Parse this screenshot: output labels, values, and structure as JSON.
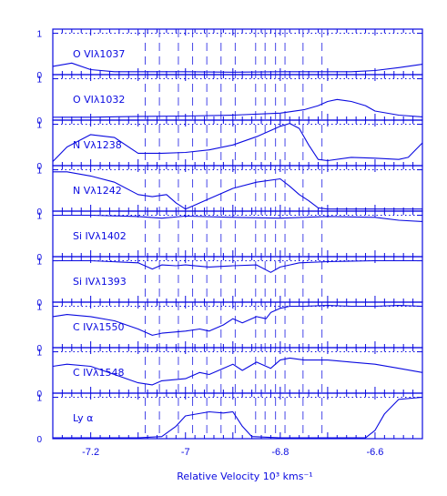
{
  "chart_data": {
    "type": "line",
    "xlabel": "Relative Velocity 10³ kms⁻¹",
    "xlim": [
      -7.28,
      -6.5
    ],
    "x_ticks": [
      -7.2,
      -7,
      -6.8,
      -6.6
    ],
    "x_tick_labels": [
      "-7.2",
      "-7",
      "-6.8",
      "-6.6"
    ],
    "ylim": [
      0,
      1.1
    ],
    "y_ticks": [
      0,
      1
    ],
    "y_tick_labels": [
      "0",
      "1"
    ],
    "reference_level": 1,
    "vertical_markers": [
      -7.085,
      -7.055,
      -7.015,
      -6.985,
      -6.955,
      -6.925,
      -6.895,
      -6.852,
      -6.832,
      -6.81,
      -6.79,
      -6.752,
      -6.712
    ],
    "color": "#0a0ae0",
    "panels": [
      {
        "label": "O VIλ1037",
        "x": [
          -7.28,
          -7.24,
          -7.2,
          -7.15,
          -7.1,
          -7.0,
          -6.9,
          -6.8,
          -6.7,
          -6.65,
          -6.6,
          -6.55,
          -6.5
        ],
        "y": [
          0.2,
          0.28,
          0.12,
          0.07,
          0.07,
          0.07,
          0.06,
          0.07,
          0.07,
          0.07,
          0.1,
          0.17,
          0.25
        ]
      },
      {
        "label": "O VIλ1032",
        "x": [
          -7.28,
          -7.2,
          -7.1,
          -7.0,
          -6.9,
          -6.8,
          -6.75,
          -6.72,
          -6.7,
          -6.68,
          -6.65,
          -6.62,
          -6.6,
          -6.55,
          -6.5
        ],
        "y": [
          0.07,
          0.07,
          0.09,
          0.1,
          0.12,
          0.17,
          0.25,
          0.35,
          0.45,
          0.5,
          0.45,
          0.35,
          0.22,
          0.12,
          0.08
        ]
      },
      {
        "label": "N Vλ1238",
        "x": [
          -7.28,
          -7.25,
          -7.2,
          -7.15,
          -7.1,
          -7.05,
          -7.0,
          -6.95,
          -6.9,
          -6.85,
          -6.82,
          -6.8,
          -6.78,
          -6.76,
          -6.74,
          -6.72,
          -6.7,
          -6.65,
          -6.6,
          -6.55,
          -6.53,
          -6.5
        ],
        "y": [
          0.1,
          0.45,
          0.75,
          0.68,
          0.3,
          0.3,
          0.32,
          0.38,
          0.5,
          0.7,
          0.85,
          0.95,
          1.02,
          0.9,
          0.5,
          0.15,
          0.12,
          0.2,
          0.18,
          0.15,
          0.2,
          0.55
        ]
      },
      {
        "label": "N Vλ1242",
        "x": [
          -7.28,
          -7.25,
          -7.2,
          -7.15,
          -7.1,
          -7.07,
          -7.04,
          -7.02,
          -7.0,
          -6.98,
          -6.95,
          -6.9,
          -6.85,
          -6.8,
          -6.78,
          -6.76,
          -6.74,
          -6.72,
          -6.7,
          -6.65,
          -6.6,
          -6.55,
          -6.5
        ],
        "y": [
          0.95,
          0.95,
          0.85,
          0.7,
          0.4,
          0.35,
          0.4,
          0.2,
          0.05,
          0.15,
          0.3,
          0.55,
          0.7,
          0.78,
          0.6,
          0.4,
          0.25,
          0.08,
          0.05,
          0.05,
          0.05,
          0.05,
          0.05
        ]
      },
      {
        "label": "Si IVλ1402",
        "x": [
          -7.28,
          -7.2,
          -7.1,
          -7.05,
          -7.0,
          -6.9,
          -6.8,
          -6.7,
          -6.6,
          -6.55,
          -6.5
        ],
        "y": [
          1.0,
          1.0,
          0.97,
          0.93,
          0.98,
          0.95,
          0.93,
          0.97,
          0.95,
          0.88,
          0.85
        ]
      },
      {
        "label": "Si IVλ1393",
        "x": [
          -7.28,
          -7.2,
          -7.1,
          -7.07,
          -7.05,
          -7.02,
          -7.0,
          -6.95,
          -6.9,
          -6.85,
          -6.82,
          -6.8,
          -6.78,
          -6.76,
          -6.7,
          -6.6,
          -6.5
        ],
        "y": [
          1.0,
          1.0,
          0.95,
          0.8,
          0.9,
          0.88,
          0.9,
          0.85,
          0.88,
          0.9,
          0.72,
          0.85,
          0.9,
          0.95,
          0.98,
          1.0,
          1.0
        ]
      },
      {
        "label": "C IVλ1550",
        "x": [
          -7.28,
          -7.25,
          -7.2,
          -7.15,
          -7.1,
          -7.07,
          -7.05,
          -7.0,
          -6.97,
          -6.95,
          -6.92,
          -6.9,
          -6.88,
          -6.85,
          -6.83,
          -6.82,
          -6.8,
          -6.78,
          -6.75,
          -6.7,
          -6.65,
          -6.6,
          -6.55,
          -6.5
        ],
        "y": [
          0.75,
          0.8,
          0.75,
          0.65,
          0.45,
          0.3,
          0.35,
          0.4,
          0.45,
          0.4,
          0.55,
          0.7,
          0.6,
          0.75,
          0.7,
          0.85,
          0.95,
          1.0,
          1.0,
          1.02,
          1.0,
          1.0,
          1.02,
          1.0
        ]
      },
      {
        "label": "C IVλ1548",
        "x": [
          -7.28,
          -7.25,
          -7.2,
          -7.15,
          -7.1,
          -7.07,
          -7.05,
          -7.0,
          -6.97,
          -6.95,
          -6.92,
          -6.9,
          -6.88,
          -6.85,
          -6.82,
          -6.8,
          -6.78,
          -6.75,
          -6.7,
          -6.65,
          -6.6,
          -6.55,
          -6.5
        ],
        "y": [
          0.65,
          0.7,
          0.65,
          0.45,
          0.25,
          0.2,
          0.3,
          0.35,
          0.5,
          0.45,
          0.6,
          0.7,
          0.55,
          0.75,
          0.6,
          0.8,
          0.85,
          0.8,
          0.8,
          0.75,
          0.7,
          0.6,
          0.5
        ]
      },
      {
        "label": "Ly α",
        "x": [
          -7.28,
          -7.1,
          -7.05,
          -7.02,
          -7.0,
          -6.95,
          -6.92,
          -6.9,
          -6.88,
          -6.86,
          -6.8,
          -6.7,
          -6.62,
          -6.6,
          -6.58,
          -6.55,
          -6.5
        ],
        "y": [
          0.02,
          0.02,
          0.05,
          0.3,
          0.55,
          0.65,
          0.62,
          0.65,
          0.3,
          0.05,
          0.02,
          0.02,
          0.02,
          0.2,
          0.6,
          0.95,
          1.0
        ]
      }
    ]
  }
}
